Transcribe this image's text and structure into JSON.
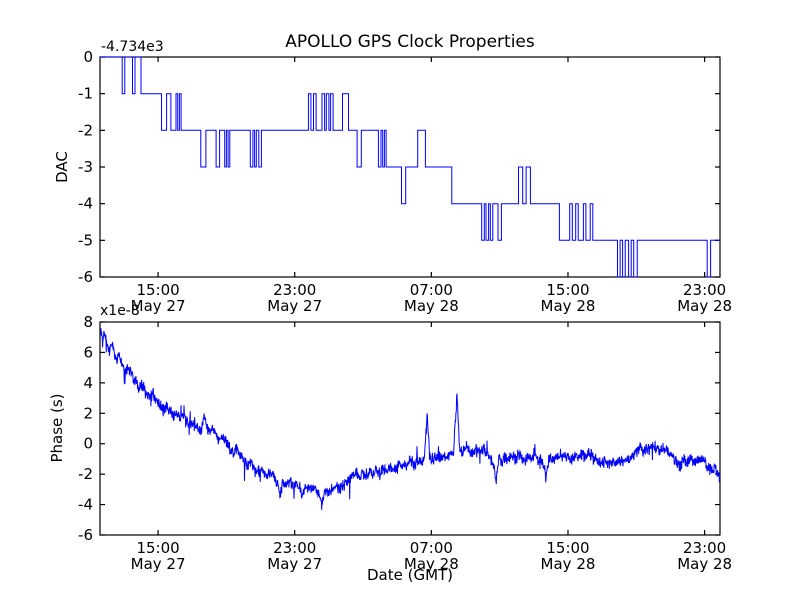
{
  "figure": {
    "title": "APOLLO GPS Clock Properties",
    "background_color": "#ffffff",
    "axis_color": "#000000",
    "line_color": "#0000ff"
  },
  "chart_data": [
    {
      "type": "line",
      "subtype": "step-post",
      "title": "APOLLO GPS Clock Properties",
      "ylabel": "DAC",
      "xlabel": "",
      "offset_text": "-4.734e3",
      "ylim": [
        -6,
        0
      ],
      "yticks": [
        0,
        -1,
        -2,
        -3,
        -4,
        -5,
        -6
      ],
      "xlim_hours": [
        0,
        36.3
      ],
      "xtick_hours": [
        3.4,
        11.4,
        19.4,
        27.4,
        35.4
      ],
      "xtick_labels": [
        [
          "15:00",
          "May 27"
        ],
        [
          "23:00",
          "May 27"
        ],
        [
          "07:00",
          "May 28"
        ],
        [
          "15:00",
          "May 28"
        ],
        [
          "23:00",
          "May 28"
        ]
      ],
      "grid": false,
      "legend": null,
      "steps": [
        [
          0,
          0
        ],
        [
          1.3,
          -1
        ],
        [
          1.45,
          0
        ],
        [
          1.9,
          -1
        ],
        [
          2.05,
          0
        ],
        [
          2.4,
          -1
        ],
        [
          3.6,
          -2
        ],
        [
          3.9,
          -1
        ],
        [
          4.15,
          -2
        ],
        [
          4.45,
          -1
        ],
        [
          4.55,
          -2
        ],
        [
          4.65,
          -1
        ],
        [
          4.75,
          -2
        ],
        [
          5.9,
          -3
        ],
        [
          6.2,
          -2
        ],
        [
          6.8,
          -3
        ],
        [
          7.0,
          -2
        ],
        [
          7.3,
          -3
        ],
        [
          7.4,
          -2
        ],
        [
          7.5,
          -3
        ],
        [
          7.6,
          -2
        ],
        [
          8.8,
          -3
        ],
        [
          8.95,
          -2
        ],
        [
          9.05,
          -3
        ],
        [
          9.15,
          -2
        ],
        [
          9.3,
          -3
        ],
        [
          9.45,
          -2
        ],
        [
          12.2,
          -1
        ],
        [
          12.35,
          -2
        ],
        [
          12.5,
          -1
        ],
        [
          12.65,
          -2
        ],
        [
          13.0,
          -1
        ],
        [
          13.15,
          -2
        ],
        [
          13.25,
          -1
        ],
        [
          13.4,
          -2
        ],
        [
          13.5,
          -1
        ],
        [
          13.65,
          -2
        ],
        [
          14.2,
          -1
        ],
        [
          14.55,
          -2
        ],
        [
          15.05,
          -3
        ],
        [
          15.3,
          -2
        ],
        [
          16.3,
          -3
        ],
        [
          16.45,
          -2
        ],
        [
          16.55,
          -3
        ],
        [
          16.65,
          -2
        ],
        [
          16.75,
          -3
        ],
        [
          17.65,
          -4
        ],
        [
          17.9,
          -3
        ],
        [
          18.6,
          -2
        ],
        [
          19.05,
          -3
        ],
        [
          20.6,
          -4
        ],
        [
          22.35,
          -5
        ],
        [
          22.5,
          -4
        ],
        [
          22.6,
          -5
        ],
        [
          22.75,
          -4
        ],
        [
          22.85,
          -5
        ],
        [
          23.0,
          -4
        ],
        [
          23.3,
          -5
        ],
        [
          23.5,
          -4
        ],
        [
          24.5,
          -3
        ],
        [
          24.75,
          -4
        ],
        [
          24.95,
          -3
        ],
        [
          25.2,
          -4
        ],
        [
          26.9,
          -5
        ],
        [
          27.5,
          -4
        ],
        [
          27.65,
          -5
        ],
        [
          27.85,
          -4
        ],
        [
          28.0,
          -5
        ],
        [
          28.3,
          -4
        ],
        [
          28.45,
          -5
        ],
        [
          28.7,
          -4
        ],
        [
          28.85,
          -5
        ],
        [
          30.3,
          -6
        ],
        [
          30.45,
          -5
        ],
        [
          30.6,
          -6
        ],
        [
          30.75,
          -5
        ],
        [
          30.95,
          -6
        ],
        [
          31.1,
          -5
        ],
        [
          31.25,
          -6
        ],
        [
          31.45,
          -5
        ],
        [
          35.55,
          -6
        ],
        [
          35.75,
          -5
        ],
        [
          36.3,
          -5
        ]
      ]
    },
    {
      "type": "line",
      "subtype": "noisy",
      "ylabel": "Phase (s)",
      "xlabel": "Date (GMT)",
      "multiplier_text": "x1e-8",
      "ylim": [
        -6,
        8
      ],
      "yticks": [
        8,
        6,
        4,
        2,
        0,
        -2,
        -4,
        -6
      ],
      "xlim_hours": [
        0,
        36.3
      ],
      "xtick_hours": [
        3.4,
        11.4,
        19.4,
        27.4,
        35.4
      ],
      "xtick_labels": [
        [
          "15:00",
          "May 27"
        ],
        [
          "23:00",
          "May 27"
        ],
        [
          "07:00",
          "May 28"
        ],
        [
          "15:00",
          "May 28"
        ],
        [
          "23:00",
          "May 28"
        ]
      ],
      "grid": false,
      "legend": null,
      "noise_amplitude": 0.3,
      "anchors": [
        [
          0.05,
          7.4
        ],
        [
          0.15,
          6.9
        ],
        [
          0.25,
          7.2
        ],
        [
          0.4,
          6.5
        ],
        [
          0.55,
          6.2
        ],
        [
          0.7,
          6.6
        ],
        [
          0.85,
          5.8
        ],
        [
          1.0,
          5.5
        ],
        [
          1.15,
          5.9
        ],
        [
          1.3,
          5.3
        ],
        [
          1.5,
          4.8
        ],
        [
          1.7,
          5.1
        ],
        [
          1.9,
          4.4
        ],
        [
          2.1,
          4.1
        ],
        [
          2.3,
          3.6
        ],
        [
          2.5,
          3.9
        ],
        [
          2.7,
          3.3
        ],
        [
          2.9,
          3.0
        ],
        [
          3.1,
          3.3
        ],
        [
          3.3,
          2.8
        ],
        [
          3.5,
          2.5
        ],
        [
          3.7,
          2.2
        ],
        [
          3.9,
          2.5
        ],
        [
          4.1,
          2.1
        ],
        [
          4.3,
          1.8
        ],
        [
          4.5,
          2.0
        ],
        [
          4.7,
          1.6
        ],
        [
          4.9,
          1.9
        ],
        [
          5.1,
          1.4
        ],
        [
          5.3,
          1.2
        ],
        [
          5.5,
          1.5
        ],
        [
          5.7,
          1.1
        ],
        [
          5.9,
          0.8
        ],
        [
          6.1,
          1.8
        ],
        [
          6.25,
          1.1
        ],
        [
          6.4,
          0.7
        ],
        [
          6.6,
          0.9
        ],
        [
          6.8,
          0.5
        ],
        [
          7.0,
          0.2
        ],
        [
          7.2,
          0.5
        ],
        [
          7.4,
          0.1
        ],
        [
          7.6,
          -0.3
        ],
        [
          7.8,
          -0.6
        ],
        [
          8.0,
          -0.3
        ],
        [
          8.2,
          -0.8
        ],
        [
          8.4,
          -1.1
        ],
        [
          8.6,
          -1.4
        ],
        [
          8.8,
          -1.2
        ],
        [
          9.0,
          -1.6
        ],
        [
          9.2,
          -1.9
        ],
        [
          9.4,
          -1.7
        ],
        [
          9.6,
          -2.0
        ],
        [
          9.8,
          -2.2
        ],
        [
          10.0,
          -2.0
        ],
        [
          10.2,
          -2.3
        ],
        [
          10.4,
          -2.6
        ],
        [
          10.55,
          -3.4
        ],
        [
          10.7,
          -2.5
        ],
        [
          10.9,
          -2.7
        ],
        [
          11.1,
          -2.5
        ],
        [
          11.3,
          -2.8
        ],
        [
          11.5,
          -2.6
        ],
        [
          11.7,
          -2.9
        ],
        [
          11.85,
          -3.7
        ],
        [
          12.0,
          -2.8
        ],
        [
          12.2,
          -3.0
        ],
        [
          12.4,
          -2.8
        ],
        [
          12.6,
          -3.1
        ],
        [
          12.8,
          -3.3
        ],
        [
          13.0,
          -4.0
        ],
        [
          13.2,
          -3.1
        ],
        [
          13.4,
          -3.3
        ],
        [
          13.6,
          -3.0
        ],
        [
          13.8,
          -2.8
        ],
        [
          14.0,
          -3.1
        ],
        [
          14.2,
          -2.8
        ],
        [
          14.4,
          -2.6
        ],
        [
          14.6,
          -2.3
        ],
        [
          14.8,
          -2.1
        ],
        [
          15.0,
          -1.9
        ],
        [
          15.2,
          -2.2
        ],
        [
          15.4,
          -1.9
        ],
        [
          15.6,
          -2.1
        ],
        [
          15.8,
          -1.8
        ],
        [
          16.0,
          -2.0
        ],
        [
          16.2,
          -1.7
        ],
        [
          16.4,
          -1.9
        ],
        [
          16.6,
          -1.6
        ],
        [
          16.8,
          -1.8
        ],
        [
          17.0,
          -1.5
        ],
        [
          17.2,
          -1.7
        ],
        [
          17.4,
          -1.4
        ],
        [
          17.6,
          -1.2
        ],
        [
          17.8,
          -1.5
        ],
        [
          18.0,
          -1.3
        ],
        [
          18.2,
          -1.1
        ],
        [
          18.4,
          -1.4
        ],
        [
          18.6,
          -1.1
        ],
        [
          18.8,
          -1.3
        ],
        [
          19.0,
          -0.9
        ],
        [
          19.15,
          2.1
        ],
        [
          19.3,
          -0.8
        ],
        [
          19.5,
          -1.1
        ],
        [
          19.7,
          -0.8
        ],
        [
          19.9,
          -1.0
        ],
        [
          20.1,
          -0.7
        ],
        [
          20.3,
          -0.9
        ],
        [
          20.5,
          -0.6
        ],
        [
          20.7,
          -0.8
        ],
        [
          20.9,
          3.4
        ],
        [
          21.05,
          -0.4
        ],
        [
          21.2,
          -0.6
        ],
        [
          21.4,
          -0.3
        ],
        [
          21.6,
          -0.5
        ],
        [
          21.8,
          -0.7
        ],
        [
          22.0,
          -0.4
        ],
        [
          22.2,
          -0.6
        ],
        [
          22.4,
          -0.3
        ],
        [
          22.6,
          -0.6
        ],
        [
          22.8,
          -0.9
        ],
        [
          23.0,
          -1.2
        ],
        [
          23.2,
          -2.3
        ],
        [
          23.35,
          -1.0
        ],
        [
          23.5,
          -1.2
        ],
        [
          23.7,
          -0.9
        ],
        [
          23.9,
          -1.1
        ],
        [
          24.1,
          -0.8
        ],
        [
          24.3,
          -1.0
        ],
        [
          24.5,
          -0.7
        ],
        [
          24.7,
          -0.9
        ],
        [
          24.9,
          -1.1
        ],
        [
          25.1,
          -0.8
        ],
        [
          25.3,
          -1.0
        ],
        [
          25.5,
          -0.7
        ],
        [
          25.7,
          -1.0
        ],
        [
          25.9,
          -1.2
        ],
        [
          26.1,
          -1.9
        ],
        [
          26.25,
          -1.1
        ],
        [
          26.4,
          -0.9
        ],
        [
          26.6,
          -1.1
        ],
        [
          26.8,
          -0.8
        ],
        [
          27.0,
          -1.0
        ],
        [
          27.2,
          -0.7
        ],
        [
          27.4,
          -0.9
        ],
        [
          27.6,
          -1.1
        ],
        [
          27.8,
          -0.8
        ],
        [
          28.0,
          -1.0
        ],
        [
          28.2,
          -0.7
        ],
        [
          28.4,
          -0.9
        ],
        [
          28.6,
          -0.6
        ],
        [
          28.8,
          -0.8
        ],
        [
          29.0,
          -1.0
        ],
        [
          29.2,
          -1.2
        ],
        [
          29.4,
          -1.4
        ],
        [
          29.6,
          -1.1
        ],
        [
          29.8,
          -1.3
        ],
        [
          30.0,
          -1.1
        ],
        [
          30.2,
          -1.3
        ],
        [
          30.4,
          -1.0
        ],
        [
          30.6,
          -1.2
        ],
        [
          30.8,
          -0.9
        ],
        [
          31.0,
          -1.1
        ],
        [
          31.2,
          -0.8
        ],
        [
          31.4,
          -0.6
        ],
        [
          31.6,
          -0.3
        ],
        [
          31.8,
          -0.5
        ],
        [
          32.0,
          -0.2
        ],
        [
          32.2,
          -0.4
        ],
        [
          32.4,
          -0.1
        ],
        [
          32.6,
          -0.3
        ],
        [
          32.8,
          -0.5
        ],
        [
          33.0,
          -0.2
        ],
        [
          33.2,
          -0.4
        ],
        [
          33.4,
          -0.7
        ],
        [
          33.6,
          -0.9
        ],
        [
          33.8,
          -1.2
        ],
        [
          34.0,
          -1.4
        ],
        [
          34.2,
          -1.1
        ],
        [
          34.4,
          -1.3
        ],
        [
          34.6,
          -1.0
        ],
        [
          34.8,
          -1.3
        ],
        [
          35.0,
          -1.1
        ],
        [
          35.2,
          -0.9
        ],
        [
          35.4,
          -1.2
        ],
        [
          35.6,
          -1.5
        ],
        [
          35.8,
          -1.8
        ],
        [
          36.0,
          -1.6
        ],
        [
          36.2,
          -2.0
        ],
        [
          36.3,
          -2.2
        ]
      ]
    }
  ]
}
